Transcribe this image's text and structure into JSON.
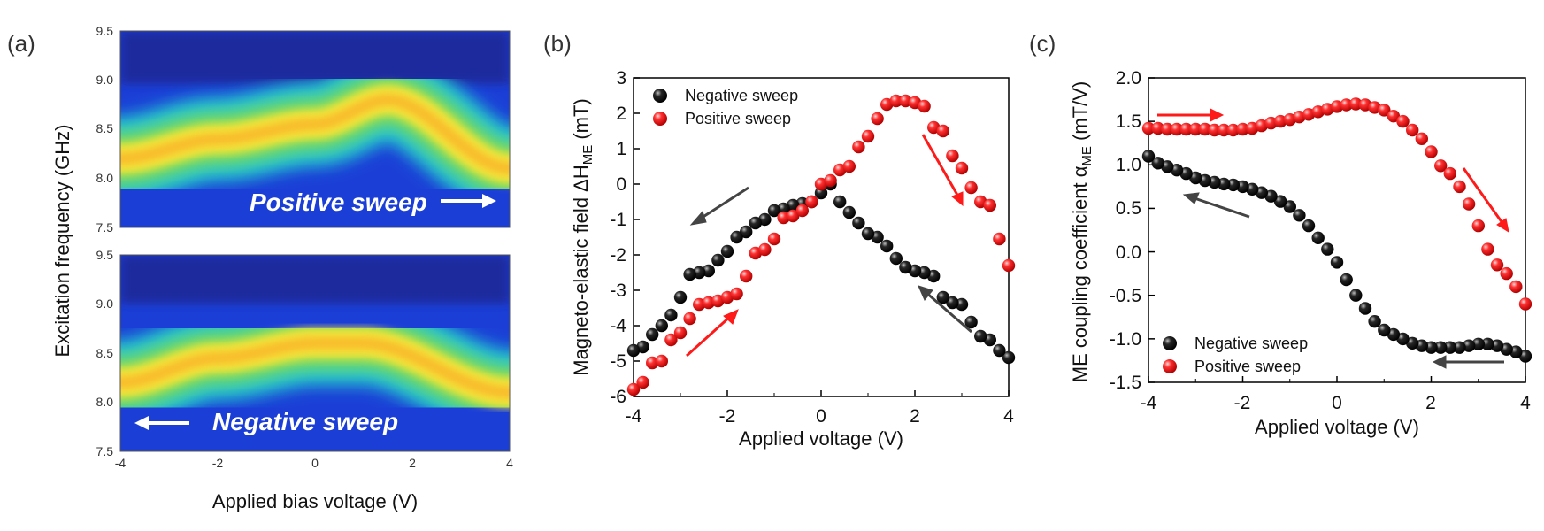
{
  "chart_data": [
    {
      "type": "heatmap",
      "panel_label": "(a)",
      "xlabel": "Applied bias voltage (V)",
      "ylabel": "Excitation frequency (GHz)",
      "xlim": [
        -4,
        4
      ],
      "x_ticks": [
        "-4",
        "-2",
        "0",
        "2",
        "4"
      ],
      "subplots": [
        {
          "name": "Positive sweep",
          "annotation": "Positive sweep",
          "arrow_direction": "right",
          "ylim": [
            7.5,
            9.5
          ],
          "y_ticks": [
            "7.5",
            "8.0",
            "8.5",
            "9.0",
            "9.5"
          ],
          "ridge": {
            "x": [
              -4,
              -2,
              0,
              1.5,
              4
            ],
            "y": [
              8.2,
              8.4,
              8.55,
              8.8,
              8.1
            ]
          }
        },
        {
          "name": "Negative sweep",
          "annotation": "Negative sweep",
          "arrow_direction": "left",
          "ylim": [
            7.5,
            9.5
          ],
          "y_ticks": [
            "7.5",
            "8.0",
            "8.5",
            "9.0",
            "9.5"
          ],
          "ridge": {
            "x": [
              -4,
              -2,
              0,
              1,
              4
            ],
            "y": [
              8.2,
              8.45,
              8.6,
              8.6,
              8.1
            ]
          }
        }
      ]
    },
    {
      "type": "scatter",
      "panel_label": "(b)",
      "xlabel": "Applied voltage (V)",
      "ylabel": "Magneto-elastic field ΔH",
      "ylabel_sub": "ME",
      "ylabel_unit": " (mT)",
      "xlim": [
        -4,
        4
      ],
      "ylim": [
        -6,
        3
      ],
      "x_ticks": [
        "-4",
        "-2",
        "0",
        "2",
        "4"
      ],
      "y_ticks": [
        "-6",
        "-5",
        "-4",
        "-3",
        "-2",
        "-1",
        "0",
        "1",
        "2",
        "3"
      ],
      "legend": [
        "Negative sweep",
        "Positive sweep"
      ],
      "series": [
        {
          "name": "Negative sweep",
          "color": "#000000",
          "x": [
            4.0,
            3.8,
            3.6,
            3.4,
            3.2,
            3.0,
            2.8,
            2.6,
            2.4,
            2.2,
            2.0,
            1.8,
            1.6,
            1.4,
            1.2,
            1.0,
            0.8,
            0.6,
            0.4,
            0.2,
            0.0,
            -0.2,
            -0.4,
            -0.6,
            -0.8,
            -1.0,
            -1.2,
            -1.4,
            -1.6,
            -1.8,
            -2.0,
            -2.2,
            -2.4,
            -2.6,
            -2.8,
            -3.0,
            -3.2,
            -3.4,
            -3.6,
            -3.8,
            -4.0
          ],
          "y": [
            -4.9,
            -4.7,
            -4.4,
            -4.3,
            -3.9,
            -3.4,
            -3.35,
            -3.2,
            -2.6,
            -2.5,
            -2.45,
            -2.35,
            -2.1,
            -1.75,
            -1.5,
            -1.4,
            -1.1,
            -0.8,
            -0.5,
            0.0,
            -0.25,
            -0.5,
            -0.55,
            -0.6,
            -0.7,
            -0.75,
            -1.0,
            -1.1,
            -1.35,
            -1.5,
            -1.9,
            -2.15,
            -2.45,
            -2.5,
            -2.55,
            -3.2,
            -3.7,
            -4.0,
            -4.25,
            -4.6,
            -4.7
          ]
        },
        {
          "name": "Positive sweep",
          "color": "#ff0000",
          "x": [
            -4.0,
            -3.8,
            -3.6,
            -3.4,
            -3.2,
            -3.0,
            -2.8,
            -2.6,
            -2.4,
            -2.2,
            -2.0,
            -1.8,
            -1.6,
            -1.4,
            -1.2,
            -1.0,
            -0.8,
            -0.6,
            -0.4,
            -0.2,
            0.0,
            0.2,
            0.4,
            0.6,
            0.8,
            1.0,
            1.2,
            1.4,
            1.6,
            1.8,
            2.0,
            2.2,
            2.4,
            2.6,
            2.8,
            3.0,
            3.2,
            3.4,
            3.6,
            3.8,
            4.0
          ],
          "y": [
            -5.8,
            -5.6,
            -5.05,
            -5.0,
            -4.4,
            -4.2,
            -3.8,
            -3.4,
            -3.35,
            -3.3,
            -3.2,
            -3.1,
            -2.6,
            -1.95,
            -1.85,
            -1.55,
            -0.95,
            -0.9,
            -0.75,
            -0.5,
            0.0,
            0.1,
            0.4,
            0.5,
            1.05,
            1.35,
            1.85,
            2.25,
            2.35,
            2.35,
            2.3,
            2.2,
            1.6,
            1.5,
            0.8,
            0.45,
            -0.1,
            -0.5,
            -0.6,
            -1.55,
            -2.3
          ]
        }
      ]
    },
    {
      "type": "scatter",
      "panel_label": "(c)",
      "xlabel": "Applied voltage (V)",
      "ylabel": "ME coupling coefficient α",
      "ylabel_sub": "ME",
      "ylabel_unit": " (mT/V)",
      "xlim": [
        -4,
        4
      ],
      "ylim": [
        -1.5,
        2.0
      ],
      "x_ticks": [
        "-4",
        "-2",
        "0",
        "2",
        "4"
      ],
      "y_ticks": [
        "-1.5",
        "-1.0",
        "-0.5",
        "0.0",
        "0.5",
        "1.0",
        "1.5",
        "2.0"
      ],
      "legend": [
        "Negative sweep",
        "Positive sweep"
      ],
      "series": [
        {
          "name": "Negative sweep",
          "color": "#000000",
          "x": [
            4.0,
            3.8,
            3.6,
            3.4,
            3.2,
            3.0,
            2.8,
            2.6,
            2.4,
            2.2,
            2.0,
            1.8,
            1.6,
            1.4,
            1.2,
            1.0,
            0.8,
            0.6,
            0.4,
            0.2,
            0.0,
            -0.2,
            -0.4,
            -0.6,
            -0.8,
            -1.0,
            -1.2,
            -1.4,
            -1.6,
            -1.8,
            -2.0,
            -2.2,
            -2.4,
            -2.6,
            -2.8,
            -3.0,
            -3.2,
            -3.4,
            -3.6,
            -3.8,
            -4.0
          ],
          "y": [
            -1.2,
            -1.15,
            -1.12,
            -1.08,
            -1.06,
            -1.06,
            -1.08,
            -1.1,
            -1.1,
            -1.1,
            -1.1,
            -1.08,
            -1.05,
            -1.0,
            -0.95,
            -0.9,
            -0.8,
            -0.65,
            -0.5,
            -0.32,
            -0.12,
            0.03,
            0.16,
            0.3,
            0.42,
            0.52,
            0.58,
            0.64,
            0.68,
            0.72,
            0.75,
            0.77,
            0.78,
            0.8,
            0.82,
            0.85,
            0.9,
            0.94,
            0.98,
            1.02,
            1.1
          ]
        },
        {
          "name": "Positive sweep",
          "color": "#ff0000",
          "x": [
            -4.0,
            -3.8,
            -3.6,
            -3.4,
            -3.2,
            -3.0,
            -2.8,
            -2.6,
            -2.4,
            -2.2,
            -2.0,
            -1.8,
            -1.6,
            -1.4,
            -1.2,
            -1.0,
            -0.8,
            -0.6,
            -0.4,
            -0.2,
            0.0,
            0.2,
            0.4,
            0.6,
            0.8,
            1.0,
            1.2,
            1.4,
            1.6,
            1.8,
            2.0,
            2.2,
            2.4,
            2.6,
            2.8,
            3.0,
            3.2,
            3.4,
            3.6,
            3.8,
            4.0
          ],
          "y": [
            1.42,
            1.42,
            1.41,
            1.41,
            1.41,
            1.41,
            1.41,
            1.4,
            1.4,
            1.4,
            1.41,
            1.42,
            1.45,
            1.48,
            1.5,
            1.52,
            1.55,
            1.58,
            1.61,
            1.64,
            1.67,
            1.69,
            1.7,
            1.69,
            1.66,
            1.63,
            1.56,
            1.5,
            1.4,
            1.3,
            1.15,
            0.99,
            0.9,
            0.75,
            0.55,
            0.3,
            0.03,
            -0.15,
            -0.25,
            -0.4,
            -0.6
          ]
        }
      ]
    }
  ]
}
